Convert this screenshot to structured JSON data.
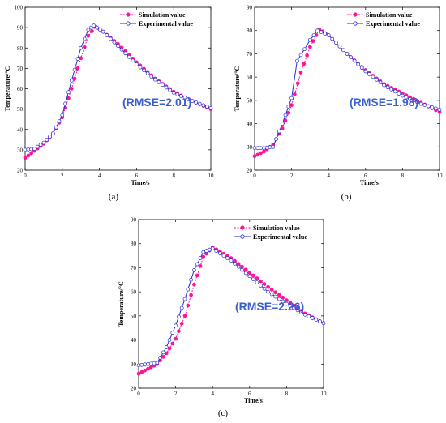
{
  "colors": {
    "simulation": "#ff1493",
    "experimental": "#2a2ad8",
    "rmse_text": "#3a5fcf"
  },
  "chart_data": [
    {
      "type": "line",
      "panel": "(a)",
      "xlabel": "Time/s",
      "ylabel": "Temperature/°C",
      "xlim": [
        0,
        10
      ],
      "ylim": [
        20,
        100
      ],
      "xticks": [
        0,
        2,
        4,
        6,
        8,
        10
      ],
      "yticks": [
        20,
        30,
        40,
        50,
        60,
        70,
        80,
        90,
        100
      ],
      "annotation": "(RMSE=2.01)",
      "legend": "top-right",
      "series": [
        {
          "name": "Simulation value",
          "points": [
            [
              0,
              26
            ],
            [
              0.5,
              29.5
            ],
            [
              1,
              33
            ],
            [
              1.5,
              38
            ],
            [
              2,
              46
            ],
            [
              2.5,
              60
            ],
            [
              3,
              75
            ],
            [
              3.4,
              86
            ],
            [
              3.8,
              90.5
            ],
            [
              4.2,
              88
            ],
            [
              5,
              82
            ],
            [
              6,
              73
            ],
            [
              7,
              65
            ],
            [
              8,
              58.5
            ],
            [
              9,
              54
            ],
            [
              10,
              50
            ]
          ]
        },
        {
          "name": "Experimental value",
          "points": [
            [
              0,
              30
            ],
            [
              0.5,
              30.5
            ],
            [
              1,
              33.5
            ],
            [
              1.5,
              38
            ],
            [
              2,
              47
            ],
            [
              2.5,
              64
            ],
            [
              3,
              80
            ],
            [
              3.4,
              89
            ],
            [
              3.7,
              91
            ],
            [
              4.2,
              88
            ],
            [
              5,
              81
            ],
            [
              6,
              72
            ],
            [
              7,
              64.5
            ],
            [
              8,
              58
            ],
            [
              9,
              54
            ],
            [
              10,
              50.5
            ]
          ]
        }
      ]
    },
    {
      "type": "line",
      "panel": "(b)",
      "xlabel": "Time/s",
      "ylabel": "Temperature/°C",
      "xlim": [
        0,
        10
      ],
      "ylim": [
        20,
        90
      ],
      "xticks": [
        0,
        2,
        4,
        6,
        8,
        10
      ],
      "yticks": [
        20,
        30,
        40,
        50,
        60,
        70,
        80,
        90
      ],
      "annotation": "(RMSE=1.98)",
      "legend": "top-right",
      "series": [
        {
          "name": "Simulation value",
          "points": [
            [
              0,
              26
            ],
            [
              0.5,
              28
            ],
            [
              1,
              31
            ],
            [
              1.5,
              38
            ],
            [
              2,
              48
            ],
            [
              2.5,
              62
            ],
            [
              3,
              73
            ],
            [
              3.5,
              80.5
            ],
            [
              4,
              78
            ],
            [
              5,
              70
            ],
            [
              6,
              63
            ],
            [
              7,
              57
            ],
            [
              8,
              53
            ],
            [
              9,
              49
            ],
            [
              10,
              45
            ]
          ]
        },
        {
          "name": "Experimental value",
          "points": [
            [
              0,
              29.5
            ],
            [
              0.5,
              29.5
            ],
            [
              1,
              30
            ],
            [
              1.5,
              40
            ],
            [
              2,
              51
            ],
            [
              2.3,
              67
            ],
            [
              2.7,
              72
            ],
            [
              3,
              76
            ],
            [
              3.4,
              80
            ],
            [
              4,
              78
            ],
            [
              5,
              70
            ],
            [
              6,
              62.5
            ],
            [
              7,
              56.5
            ],
            [
              8,
              52
            ],
            [
              9,
              48.5
            ],
            [
              10,
              46
            ]
          ]
        }
      ]
    },
    {
      "type": "line",
      "panel": "(c)",
      "xlabel": "Time/s",
      "ylabel": "Temperature/°C",
      "xlim": [
        0,
        10
      ],
      "ylim": [
        20,
        90
      ],
      "xticks": [
        0,
        2,
        4,
        6,
        8,
        10
      ],
      "yticks": [
        20,
        30,
        40,
        50,
        60,
        70,
        80,
        90
      ],
      "annotation": "(RMSE=2.26)",
      "legend": "top-right",
      "series": [
        {
          "name": "Simulation value",
          "points": [
            [
              0,
              26
            ],
            [
              0.5,
              28
            ],
            [
              1,
              30
            ],
            [
              1.5,
              34.5
            ],
            [
              2,
              40.5
            ],
            [
              2.5,
              50
            ],
            [
              3,
              63
            ],
            [
              3.5,
              74.5
            ],
            [
              4,
              78.5
            ],
            [
              5,
              74
            ],
            [
              6,
              68
            ],
            [
              7,
              62
            ],
            [
              8,
              56.5
            ],
            [
              9,
              51
            ],
            [
              10,
              47
            ]
          ]
        },
        {
          "name": "Experimental value",
          "points": [
            [
              0,
              29.5
            ],
            [
              0.5,
              30
            ],
            [
              1,
              30.5
            ],
            [
              1.5,
              37
            ],
            [
              2,
              46
            ],
            [
              2.5,
              57
            ],
            [
              3,
              69
            ],
            [
              3.5,
              76.5
            ],
            [
              4,
              78
            ],
            [
              5,
              73
            ],
            [
              6,
              66.5
            ],
            [
              7,
              60
            ],
            [
              8,
              55
            ],
            [
              9,
              50.5
            ],
            [
              10,
              47
            ]
          ]
        }
      ]
    }
  ]
}
